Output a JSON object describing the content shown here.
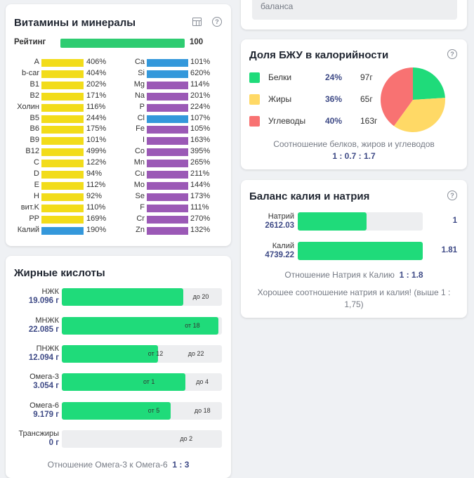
{
  "vitamins": {
    "title": "Витамины и минералы",
    "rating_label": "Рейтинг",
    "rating_value": "100",
    "left": [
      {
        "name": "A",
        "pct": "406%"
      },
      {
        "name": "b-car",
        "pct": "404%"
      },
      {
        "name": "B1",
        "pct": "202%"
      },
      {
        "name": "B2",
        "pct": "171%"
      },
      {
        "name": "Холин",
        "pct": "116%"
      },
      {
        "name": "B5",
        "pct": "244%"
      },
      {
        "name": "B6",
        "pct": "175%"
      },
      {
        "name": "B9",
        "pct": "101%"
      },
      {
        "name": "B12",
        "pct": "499%"
      },
      {
        "name": "C",
        "pct": "122%"
      },
      {
        "name": "D",
        "pct": "94%"
      },
      {
        "name": "E",
        "pct": "112%"
      },
      {
        "name": "H",
        "pct": "92%"
      },
      {
        "name": "вит.K",
        "pct": "110%"
      },
      {
        "name": "PP",
        "pct": "169%"
      },
      {
        "name": "Калий",
        "pct": "190%"
      }
    ],
    "right": [
      {
        "name": "Ca",
        "pct": "101%"
      },
      {
        "name": "Si",
        "pct": "620%"
      },
      {
        "name": "Mg",
        "pct": "114%"
      },
      {
        "name": "Na",
        "pct": "201%"
      },
      {
        "name": "P",
        "pct": "224%"
      },
      {
        "name": "Cl",
        "pct": "107%"
      },
      {
        "name": "Fe",
        "pct": "105%"
      },
      {
        "name": "I",
        "pct": "163%"
      },
      {
        "name": "Co",
        "pct": "395%"
      },
      {
        "name": "Mn",
        "pct": "265%"
      },
      {
        "name": "Cu",
        "pct": "211%"
      },
      {
        "name": "Mo",
        "pct": "144%"
      },
      {
        "name": "Se",
        "pct": "173%"
      },
      {
        "name": "F",
        "pct": "111%"
      },
      {
        "name": "Cr",
        "pct": "270%"
      },
      {
        "name": "Zn",
        "pct": "132%"
      }
    ],
    "colors": {
      "yellow": "#f2dc1a",
      "blue": "#3498db",
      "purple": "#9b59b6",
      "green": "#2ecc71"
    }
  },
  "fats": {
    "title": "Жирные кислоты",
    "rows": [
      {
        "name": "НЖК",
        "value": "19.096 г",
        "fill": 0.76,
        "ticks": [
          "до 20"
        ]
      },
      {
        "name": "МНЖК",
        "value": "22.085 г",
        "fill": 0.98,
        "ticks": [
          "от 18"
        ]
      },
      {
        "name": "ПНЖК",
        "value": "12.094 г",
        "fill": 0.6,
        "ticks": [
          "от 12",
          "до 22"
        ]
      },
      {
        "name": "Омега-3",
        "value": "3.054 г",
        "fill": 0.77,
        "ticks": [
          "от 1",
          "до 4"
        ]
      },
      {
        "name": "Омега-6",
        "value": "9.179 г",
        "fill": 0.68,
        "ticks": [
          "от 5",
          "до 18"
        ]
      },
      {
        "name": "Трансжиры",
        "value": "0 г",
        "fill": 0,
        "ticks": [
          "до 2"
        ]
      }
    ],
    "ratio_label": "Отношение Омега-3 к Омега-6",
    "ratio_value": "1 : 3"
  },
  "balance_top": {
    "text": "баланса"
  },
  "bju": {
    "title": "Доля БЖУ в калорийности",
    "items": [
      {
        "name": "Белки",
        "pct": "24%",
        "grams": "97г",
        "color": "#1fdb7a"
      },
      {
        "name": "Жиры",
        "pct": "36%",
        "grams": "65г",
        "color": "#ffd966"
      },
      {
        "name": "Углеводы",
        "pct": "40%",
        "grams": "163г",
        "color": "#f87272"
      }
    ],
    "chart_data": {
      "type": "pie",
      "categories": [
        "Белки",
        "Жиры",
        "Углеводы"
      ],
      "values": [
        24,
        36,
        40
      ],
      "title": "Доля БЖУ в калорийности"
    },
    "ratio_label": "Соотношение белков, жиров и углеводов",
    "ratio_value": "1 : 0.7 : 1.7"
  },
  "kna": {
    "title": "Баланс калия и натрия",
    "rows": [
      {
        "name": "Натрий",
        "value": "2612.03",
        "ratio": "1",
        "fill": 0.55
      },
      {
        "name": "Калий",
        "value": "4739.22",
        "ratio": "1.81",
        "fill": 1.0
      }
    ],
    "ratio_label": "Отношение Натрия к Калию",
    "ratio_value": "1 : 1.8",
    "note": "Хорошее соотношение натрия и калия! (выше 1 : 1,75)"
  }
}
